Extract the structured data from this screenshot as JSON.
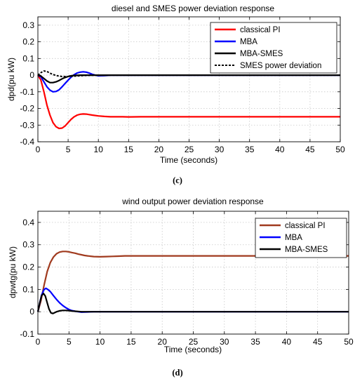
{
  "chart_data": [
    {
      "type": "line",
      "title": "diesel and SMES power deviation response",
      "xlabel": "Time (seconds)",
      "ylabel": "dpd(pu kW)",
      "caption": "(c)",
      "xlim": [
        0,
        50
      ],
      "ylim": [
        -0.4,
        0.35
      ],
      "xticks": [
        "0",
        "5",
        "10",
        "15",
        "20",
        "25",
        "30",
        "35",
        "40",
        "45",
        "50"
      ],
      "yticks": [
        "-0.4",
        "-0.3",
        "-0.2",
        "-0.1",
        "0",
        "0.1",
        "0.2",
        "0.3"
      ],
      "grid": true,
      "legend_position": "top-right",
      "series": [
        {
          "name": "classical PI",
          "color": "#ff0000",
          "style": "solid",
          "x": [
            0,
            0.5,
            1,
            1.5,
            2,
            2.5,
            3,
            3.5,
            4,
            4.5,
            5,
            5.5,
            6,
            6.5,
            7,
            7.5,
            8,
            8.5,
            9,
            10,
            11,
            12,
            13,
            14,
            15,
            17,
            20,
            25,
            30,
            35,
            40,
            45,
            50
          ],
          "y": [
            0,
            -0.03,
            -0.1,
            -0.18,
            -0.24,
            -0.285,
            -0.31,
            -0.32,
            -0.318,
            -0.305,
            -0.285,
            -0.265,
            -0.25,
            -0.24,
            -0.235,
            -0.233,
            -0.234,
            -0.237,
            -0.24,
            -0.245,
            -0.248,
            -0.25,
            -0.25,
            -0.25,
            -0.251,
            -0.25,
            -0.25,
            -0.25,
            -0.25,
            -0.25,
            -0.25,
            -0.25,
            -0.25
          ]
        },
        {
          "name": "MBA",
          "color": "#0000ff",
          "style": "solid",
          "x": [
            0,
            0.5,
            1,
            1.5,
            2,
            2.5,
            3,
            3.5,
            4,
            4.5,
            5,
            5.5,
            6,
            6.5,
            7,
            7.5,
            8,
            8.5,
            9,
            9.5,
            10,
            11,
            12,
            14,
            50
          ],
          "y": [
            0,
            -0.01,
            -0.04,
            -0.07,
            -0.09,
            -0.1,
            -0.098,
            -0.088,
            -0.07,
            -0.05,
            -0.03,
            -0.012,
            0.003,
            0.013,
            0.018,
            0.02,
            0.018,
            0.012,
            0.005,
            0.0,
            -0.004,
            -0.003,
            0,
            0,
            0
          ]
        },
        {
          "name": "MBA-SMES",
          "color": "#000000",
          "style": "solid",
          "x": [
            0,
            0.5,
            1,
            1.5,
            2,
            2.5,
            3,
            3.5,
            4,
            4.5,
            5,
            5.5,
            6,
            7,
            8,
            50
          ],
          "y": [
            0,
            -0.005,
            -0.02,
            -0.035,
            -0.045,
            -0.045,
            -0.04,
            -0.032,
            -0.022,
            -0.014,
            -0.008,
            -0.004,
            -0.002,
            0,
            0,
            0
          ]
        },
        {
          "name": "SMES power deviation",
          "color": "#000000",
          "style": "dashed",
          "x": [
            0,
            0.5,
            1,
            1.5,
            2,
            2.5,
            3,
            3.5,
            4,
            5,
            6,
            7,
            8,
            10,
            15,
            20,
            50
          ],
          "y": [
            0,
            0.015,
            0.025,
            0.022,
            0.012,
            0.004,
            -0.002,
            -0.006,
            -0.008,
            -0.008,
            -0.006,
            -0.004,
            -0.002,
            0,
            0,
            0,
            0
          ]
        }
      ]
    },
    {
      "type": "line",
      "title": "wind output power deviation response",
      "xlabel": "Time (seconds)",
      "ylabel": "dpwtg(pu kW)",
      "caption": "(d)",
      "xlim": [
        0,
        50
      ],
      "ylim": [
        -0.1,
        0.45
      ],
      "xticks": [
        "0",
        "5",
        "10",
        "15",
        "20",
        "25",
        "30",
        "35",
        "40",
        "45",
        "50"
      ],
      "yticks": [
        "-0.1",
        "0",
        "0.1",
        "0.2",
        "0.3",
        "0.4"
      ],
      "grid": true,
      "legend_position": "top-right",
      "series": [
        {
          "name": "classical PI",
          "color": "#a03a1e",
          "style": "solid",
          "x": [
            0,
            0.5,
            1,
            1.5,
            2,
            2.5,
            3,
            3.5,
            4,
            4.5,
            5,
            5.5,
            6,
            6.5,
            7,
            7.5,
            8,
            9,
            10,
            11,
            12,
            13,
            14,
            15,
            17,
            20,
            25,
            30,
            35,
            40,
            45,
            50
          ],
          "y": [
            0,
            0.05,
            0.12,
            0.18,
            0.22,
            0.245,
            0.26,
            0.267,
            0.27,
            0.27,
            0.268,
            0.265,
            0.262,
            0.258,
            0.255,
            0.252,
            0.25,
            0.247,
            0.246,
            0.247,
            0.248,
            0.249,
            0.25,
            0.25,
            0.25,
            0.25,
            0.25,
            0.25,
            0.25,
            0.25,
            0.25,
            0.25
          ]
        },
        {
          "name": "MBA",
          "color": "#0000ff",
          "style": "solid",
          "x": [
            0,
            0.3,
            0.6,
            1,
            1.3,
            1.6,
            2,
            2.5,
            3,
            3.5,
            4,
            4.5,
            5,
            5.5,
            6,
            6.5,
            7,
            8,
            9,
            50
          ],
          "y": [
            0,
            0.04,
            0.075,
            0.1,
            0.105,
            0.1,
            0.09,
            0.072,
            0.055,
            0.04,
            0.028,
            0.018,
            0.01,
            0.005,
            0.002,
            0,
            -0.002,
            -0.001,
            0,
            0
          ]
        },
        {
          "name": "MBA-SMES",
          "color": "#000000",
          "style": "solid",
          "x": [
            0,
            0.3,
            0.6,
            0.9,
            1.2,
            1.5,
            1.8,
            2.1,
            2.4,
            2.7,
            3,
            3.5,
            4,
            4.5,
            5,
            5.5,
            6,
            7,
            8,
            50
          ],
          "y": [
            0,
            0.04,
            0.072,
            0.082,
            0.07,
            0.04,
            0.012,
            -0.005,
            -0.008,
            -0.004,
            0,
            0.004,
            0.006,
            0.006,
            0.005,
            0.003,
            0.002,
            0,
            0,
            0
          ]
        }
      ]
    }
  ]
}
